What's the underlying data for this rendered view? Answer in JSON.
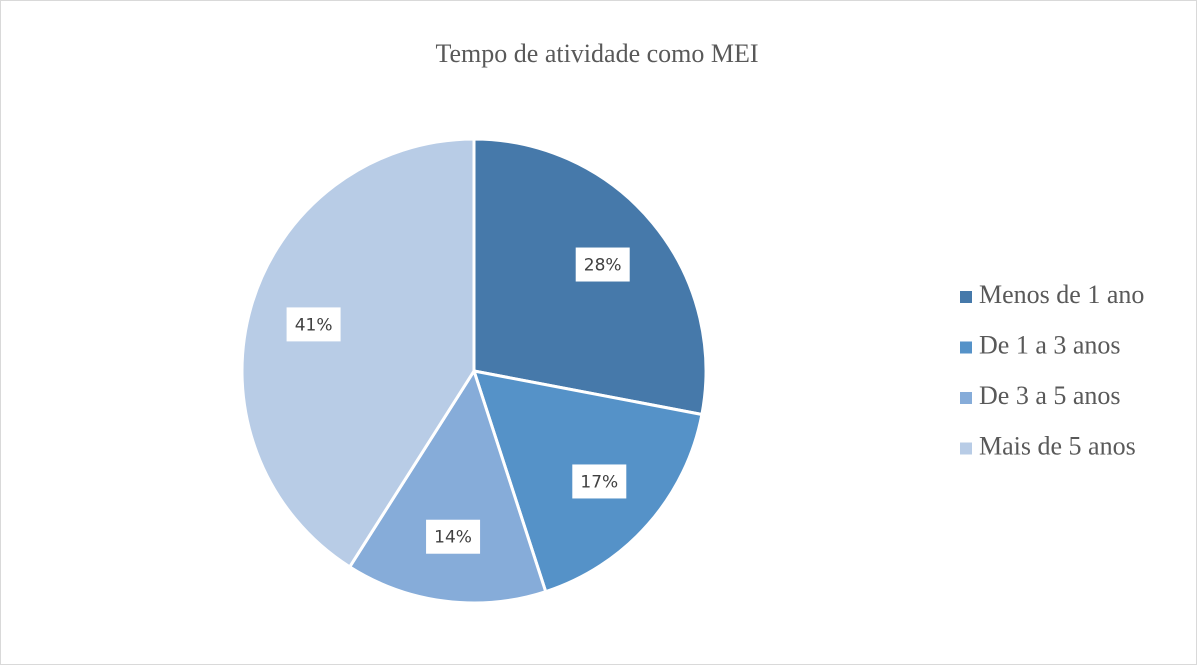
{
  "chart_data": {
    "type": "pie",
    "title": "Tempo de atividade como MEI",
    "categories": [
      "Menos de 1 ano",
      "De 1 a 3 anos",
      "De 3 a 5 anos",
      "Mais de 5 anos"
    ],
    "values": [
      28,
      17,
      14,
      41
    ],
    "value_labels": [
      "28%",
      "17%",
      "14%",
      "41%"
    ],
    "colors": [
      "#4679aa",
      "#5592c8",
      "#86acd9",
      "#b8cce6"
    ],
    "legend": "right"
  }
}
